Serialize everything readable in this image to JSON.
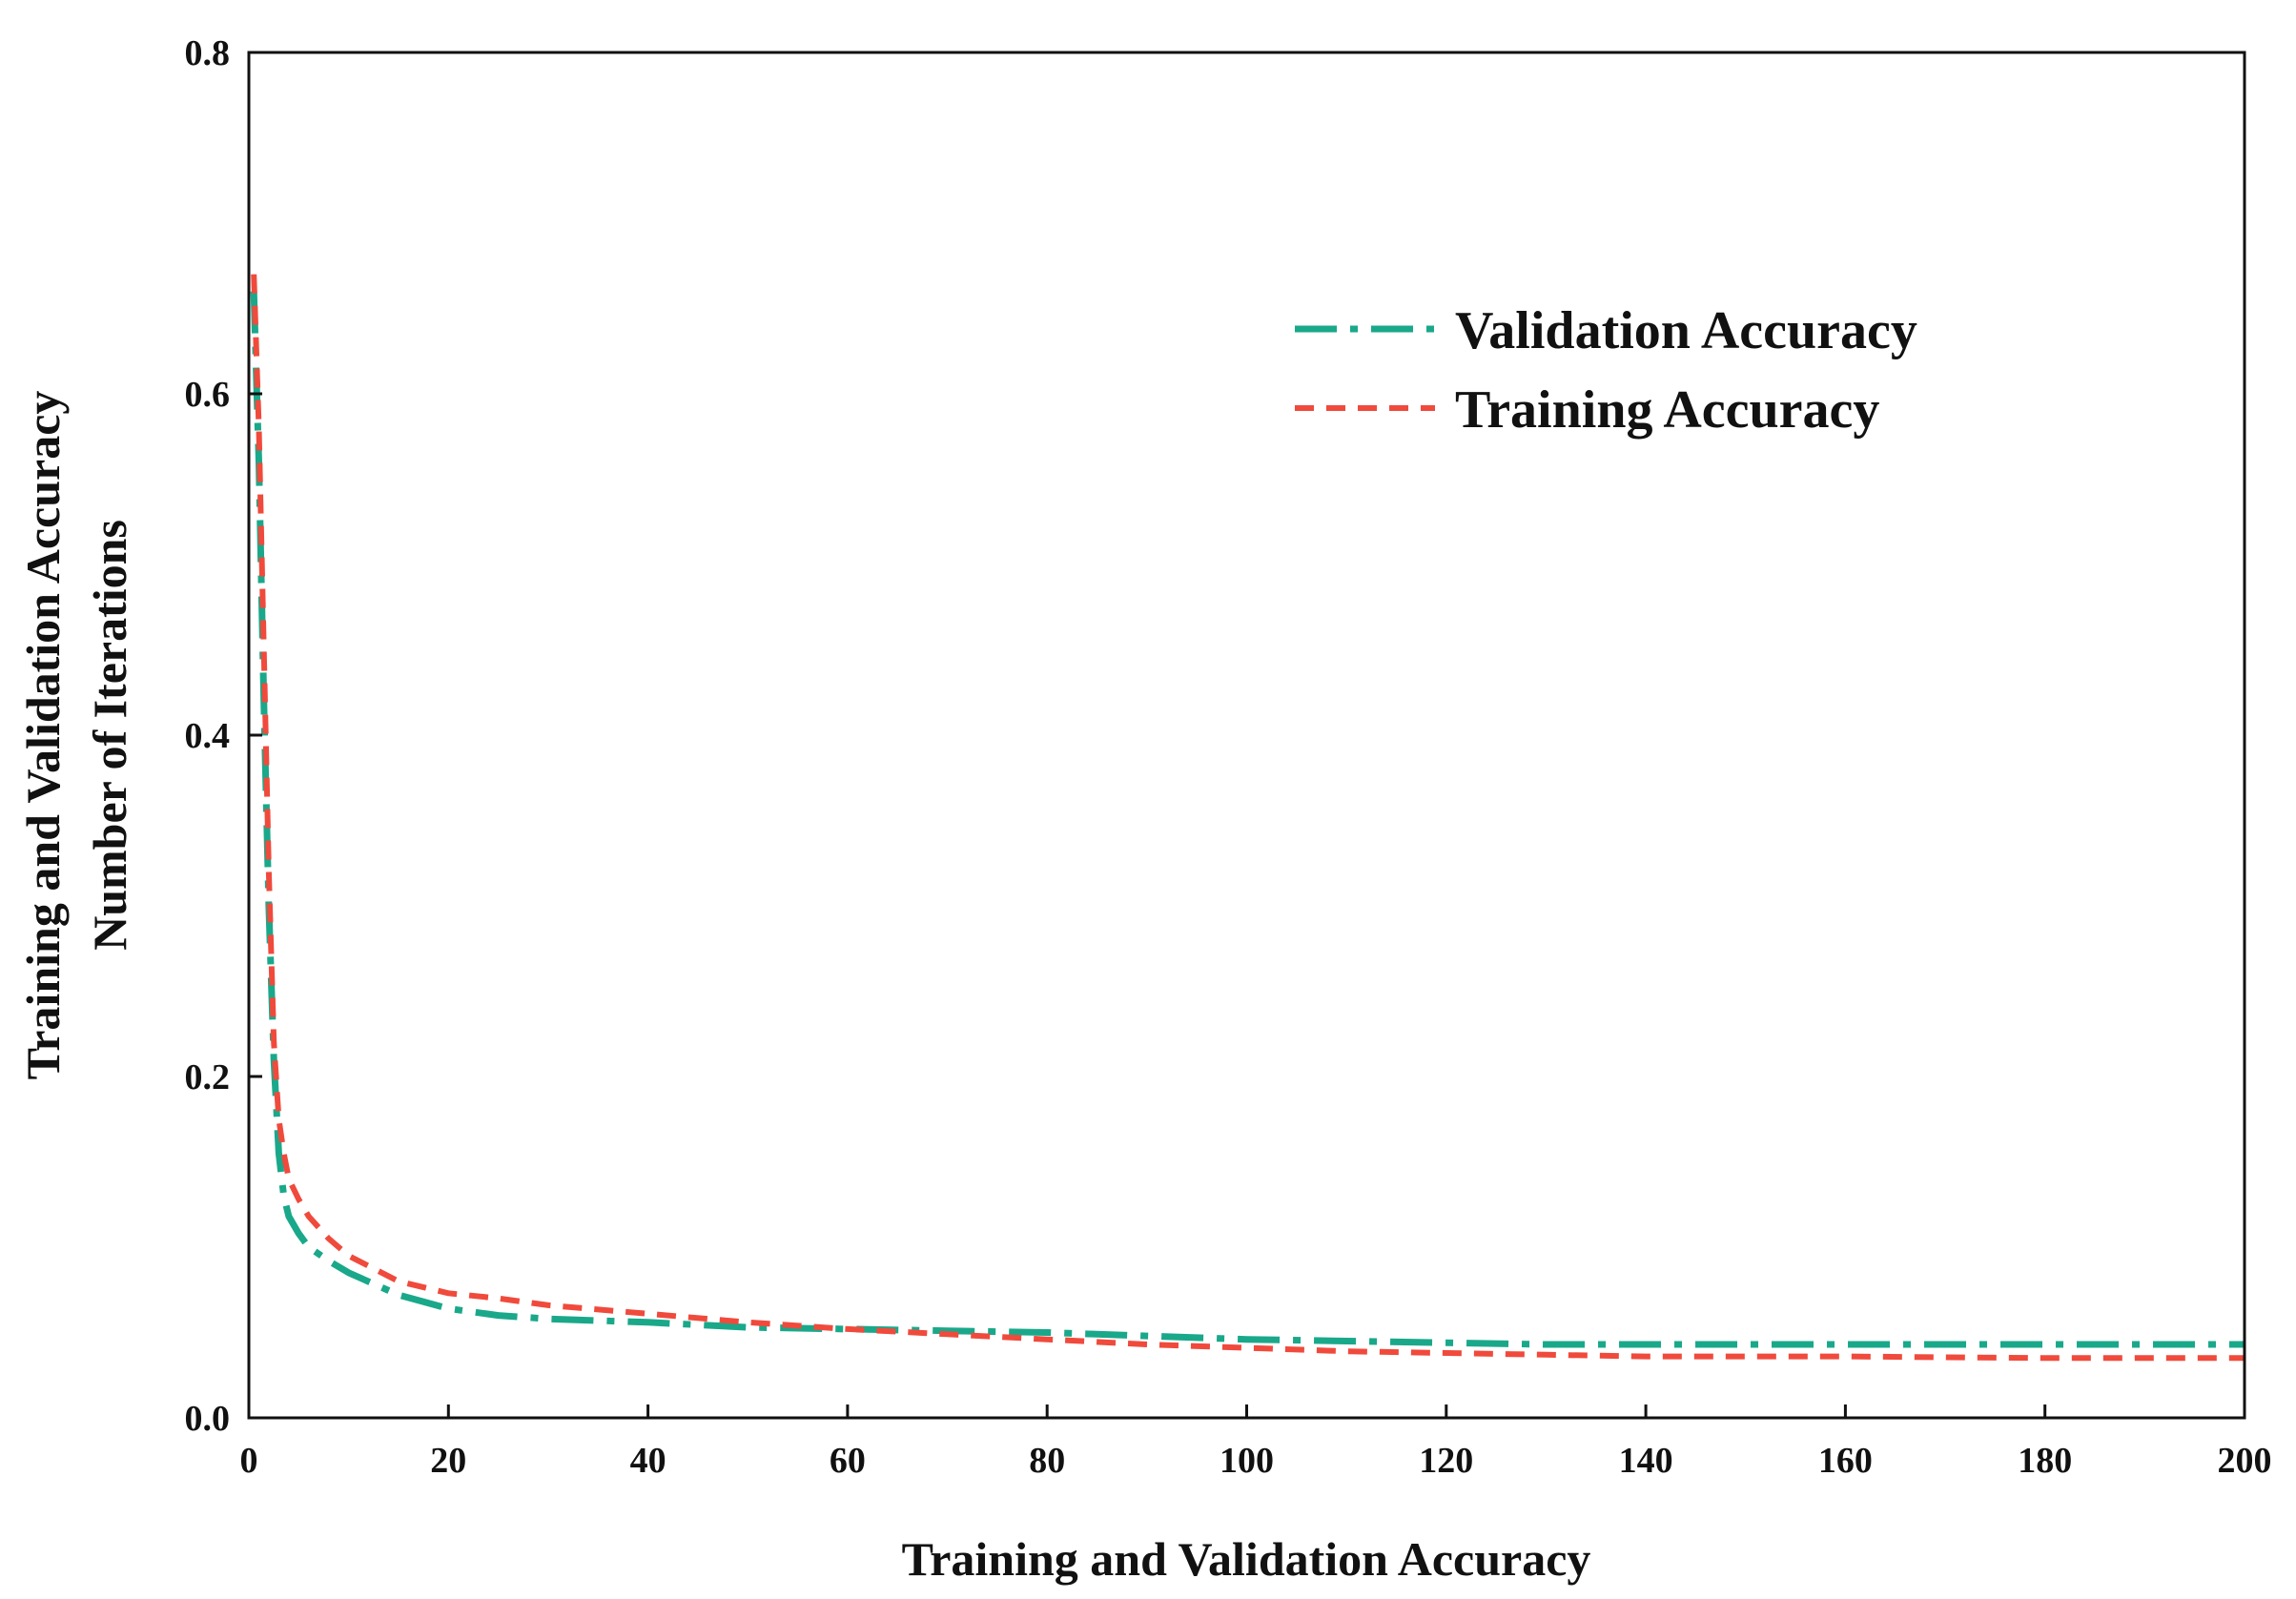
{
  "chart_data": {
    "type": "line",
    "title": "",
    "xlabel": "Training and Validation Accuracy",
    "ylabel_lines": [
      "Training and Validation Accuracy",
      "Number of Iterations"
    ],
    "xlim": [
      0,
      200
    ],
    "ylim": [
      0,
      0.8
    ],
    "x_ticks": [
      0,
      20,
      40,
      60,
      80,
      100,
      120,
      140,
      160,
      180,
      200
    ],
    "x_tick_labels": [
      "0",
      "20",
      "40",
      "60",
      "80",
      "100",
      "120",
      "140",
      "160",
      "180",
      "200"
    ],
    "y_ticks": [
      0,
      0.2,
      0.4,
      0.6,
      0.8
    ],
    "y_tick_labels": [
      "0.0",
      "0.2",
      "0.4",
      "0.6",
      "0.8"
    ],
    "grid": false,
    "legend_position": "top-right",
    "series": [
      {
        "name": "Validation Accuracy",
        "color": "#1aa88a",
        "dash": "dash-dot",
        "x": [
          0.5,
          1,
          1.5,
          2,
          2.5,
          3,
          3.5,
          4,
          5,
          6,
          8,
          10,
          15,
          20,
          25,
          30,
          40,
          50,
          60,
          70,
          80,
          90,
          100,
          110,
          120,
          130,
          140,
          160,
          180,
          200
        ],
        "y": [
          0.66,
          0.56,
          0.42,
          0.3,
          0.21,
          0.155,
          0.13,
          0.118,
          0.108,
          0.1,
          0.092,
          0.085,
          0.072,
          0.064,
          0.06,
          0.058,
          0.056,
          0.053,
          0.052,
          0.051,
          0.05,
          0.048,
          0.046,
          0.045,
          0.044,
          0.043,
          0.043,
          0.043,
          0.043,
          0.043
        ]
      },
      {
        "name": "Training Accuracy",
        "color": "#f04a3c",
        "dash": "dashed",
        "x": [
          0.5,
          1,
          1.5,
          2,
          2.5,
          3,
          3.5,
          4,
          5,
          6,
          8,
          10,
          15,
          20,
          25,
          30,
          40,
          50,
          60,
          70,
          80,
          90,
          100,
          110,
          120,
          130,
          140,
          160,
          180,
          200
        ],
        "y": [
          0.67,
          0.58,
          0.45,
          0.32,
          0.22,
          0.175,
          0.155,
          0.14,
          0.128,
          0.118,
          0.105,
          0.095,
          0.08,
          0.073,
          0.07,
          0.066,
          0.061,
          0.056,
          0.052,
          0.049,
          0.046,
          0.043,
          0.041,
          0.039,
          0.038,
          0.037,
          0.036,
          0.036,
          0.035,
          0.035
        ]
      }
    ]
  }
}
